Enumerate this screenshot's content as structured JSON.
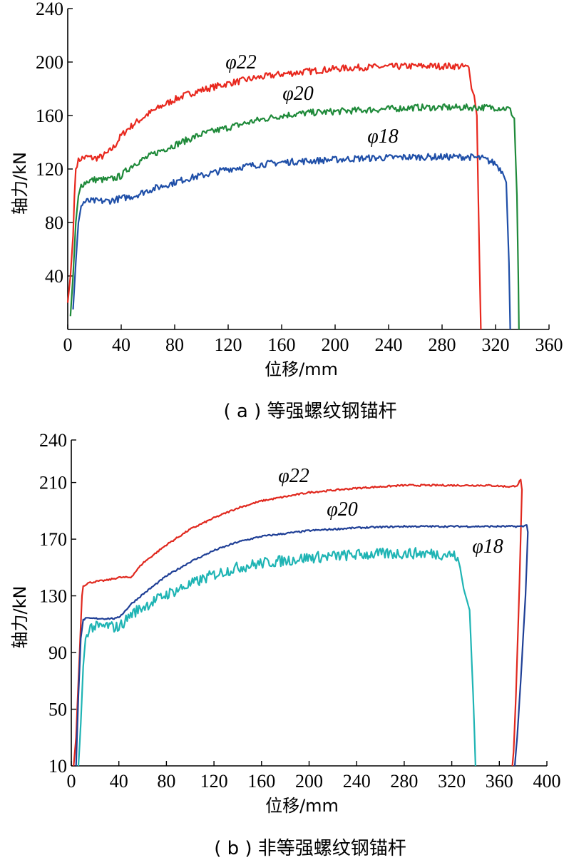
{
  "chart_data": [
    {
      "id": "a",
      "type": "line",
      "caption": "( a ) 等强螺纹钢锚杆",
      "xlabel": "位移/mm",
      "ylabel": "轴力/kN",
      "xlim": [
        0,
        360
      ],
      "ylim": [
        0,
        240
      ],
      "xticks": [
        0,
        40,
        80,
        120,
        160,
        200,
        240,
        280,
        320,
        360
      ],
      "yticks": [
        40,
        80,
        120,
        160,
        200,
        240
      ],
      "series": [
        {
          "name": "φ22",
          "color": "#e8281e",
          "noise": 2.5,
          "x": [
            0,
            2,
            4,
            5,
            6,
            7,
            8,
            10,
            15,
            20,
            25,
            30,
            35,
            40,
            45,
            50,
            60,
            70,
            80,
            90,
            100,
            120,
            140,
            160,
            180,
            200,
            220,
            240,
            260,
            280,
            290,
            300,
            302,
            304,
            306,
            308,
            309
          ],
          "y": [
            20,
            40,
            70,
            100,
            120,
            124,
            126,
            128,
            129,
            128,
            129,
            132,
            137,
            145,
            150,
            154,
            161,
            167,
            172,
            176,
            179,
            184,
            188,
            191,
            193,
            195,
            196,
            196.5,
            197,
            197,
            197,
            196,
            180,
            175,
            160,
            50,
            0
          ]
        },
        {
          "name": "φ20",
          "color": "#1f8a3a",
          "noise": 2.5,
          "x": [
            2,
            4,
            6,
            8,
            10,
            15,
            20,
            25,
            30,
            35,
            40,
            45,
            50,
            60,
            70,
            80,
            90,
            100,
            120,
            140,
            160,
            180,
            200,
            220,
            240,
            260,
            280,
            300,
            310,
            320,
            330,
            332,
            334,
            336,
            337,
            337.5
          ],
          "y": [
            10,
            40,
            80,
            100,
            108,
            111,
            112,
            112,
            112,
            113,
            115,
            120,
            124,
            129,
            134,
            138,
            142,
            146,
            151,
            156,
            160,
            162,
            163,
            164,
            165,
            166,
            166,
            166,
            166,
            166,
            165,
            162,
            158,
            100,
            40,
            0
          ]
        },
        {
          "name": "φ18",
          "color": "#1f4fa8",
          "noise": 2.5,
          "x": [
            4,
            6,
            8,
            10,
            12,
            15,
            20,
            25,
            30,
            35,
            40,
            50,
            60,
            70,
            80,
            90,
            100,
            120,
            140,
            160,
            180,
            200,
            220,
            240,
            260,
            280,
            300,
            310,
            320,
            325,
            328,
            330,
            331
          ],
          "y": [
            15,
            50,
            80,
            92,
            95,
            96,
            96,
            96,
            96,
            97,
            98,
            100,
            104,
            107,
            110,
            113,
            115,
            120,
            123,
            125,
            126,
            127,
            128,
            128.5,
            129,
            129,
            129,
            128,
            124,
            118,
            110,
            50,
            0
          ]
        }
      ]
    },
    {
      "id": "b",
      "type": "line",
      "caption": "( b ) 非等强螺纹钢锚杆",
      "xlabel": "位移/mm",
      "ylabel": "轴力/kN",
      "xlim": [
        0,
        400
      ],
      "ylim": [
        10,
        240
      ],
      "xticks": [
        0,
        40,
        80,
        120,
        160,
        200,
        240,
        280,
        320,
        360,
        400
      ],
      "yticks": [
        10,
        50,
        90,
        130,
        170,
        210,
        240
      ],
      "series": [
        {
          "name": "φ22",
          "color": "#e0281e",
          "noise": 0.6,
          "x": [
            2,
            4,
            6,
            8,
            9,
            10,
            14,
            20,
            30,
            40,
            45,
            50,
            55,
            60,
            80,
            100,
            120,
            140,
            160,
            200,
            240,
            280,
            320,
            350,
            370,
            375,
            378,
            379,
            377,
            374,
            372,
            371
          ],
          "y": [
            10,
            30,
            70,
            110,
            130,
            137,
            139,
            140,
            141,
            143,
            143,
            143,
            148,
            153,
            166,
            177,
            185,
            192,
            197,
            203,
            206,
            208,
            208,
            208,
            207,
            208,
            212,
            205,
            140,
            60,
            20,
            10
          ]
        },
        {
          "name": "φ20",
          "color": "#1f3f96",
          "noise": 0.6,
          "x": [
            4,
            6,
            8,
            10,
            12,
            20,
            30,
            38,
            40,
            45,
            50,
            60,
            80,
            100,
            120,
            140,
            160,
            200,
            240,
            280,
            320,
            350,
            370,
            380,
            383,
            384,
            382,
            378,
            375,
            373
          ],
          "y": [
            10,
            60,
            100,
            113,
            114,
            114,
            114,
            114,
            115,
            119,
            124,
            131,
            144,
            154,
            162,
            168,
            172,
            176,
            178,
            179,
            179,
            179,
            179,
            179,
            180,
            175,
            130,
            70,
            30,
            10
          ]
        },
        {
          "name": "φ18",
          "color": "#1fb4b4",
          "noise": 4.0,
          "x": [
            6,
            8,
            10,
            12,
            14,
            16,
            18,
            20,
            25,
            30,
            35,
            40,
            45,
            50,
            60,
            80,
            100,
            120,
            140,
            160,
            200,
            240,
            280,
            300,
            320,
            325,
            327,
            330,
            335,
            338,
            340
          ],
          "y": [
            10,
            40,
            80,
            100,
            105,
            108,
            108,
            108,
            108,
            109,
            108,
            108,
            112,
            117,
            122,
            131,
            138,
            145,
            150,
            153,
            157,
            159,
            160,
            160,
            159,
            157,
            150,
            135,
            120,
            60,
            10
          ]
        }
      ]
    }
  ]
}
